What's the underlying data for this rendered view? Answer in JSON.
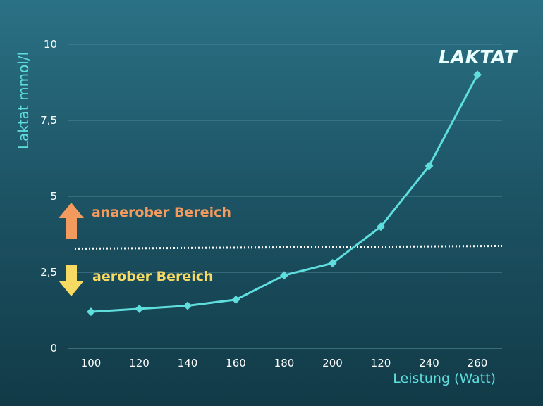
{
  "chart_data": {
    "type": "line",
    "title": "",
    "xlabel": "Leistung (Watt)",
    "ylabel": "Laktat mmol/l",
    "categories": [
      "100",
      "120",
      "140",
      "160",
      "180",
      "200",
      "120",
      "240",
      "260"
    ],
    "series": [
      {
        "name": "LAKTAT",
        "values": [
          1.2,
          1.3,
          1.4,
          1.6,
          2.4,
          2.8,
          4.0,
          6.0,
          9.0
        ]
      }
    ],
    "ylim": [
      0,
      10
    ],
    "yticks": [
      {
        "value": 0,
        "label": "0"
      },
      {
        "value": 2.5,
        "label": "2,5"
      },
      {
        "value": 5,
        "label": "5"
      },
      {
        "value": 7.5,
        "label": "7,5"
      },
      {
        "value": 10,
        "label": "10"
      }
    ],
    "grid": true,
    "threshold": {
      "value": 3.3,
      "style": "dotted"
    },
    "annotations": {
      "above": "anaerober Bereich",
      "below": "aerober Bereich"
    },
    "colors": {
      "line": "#5fdede",
      "label": "#5fdede",
      "grid": "#4d8897",
      "above": "#f39a5e",
      "below": "#f6da63"
    }
  }
}
